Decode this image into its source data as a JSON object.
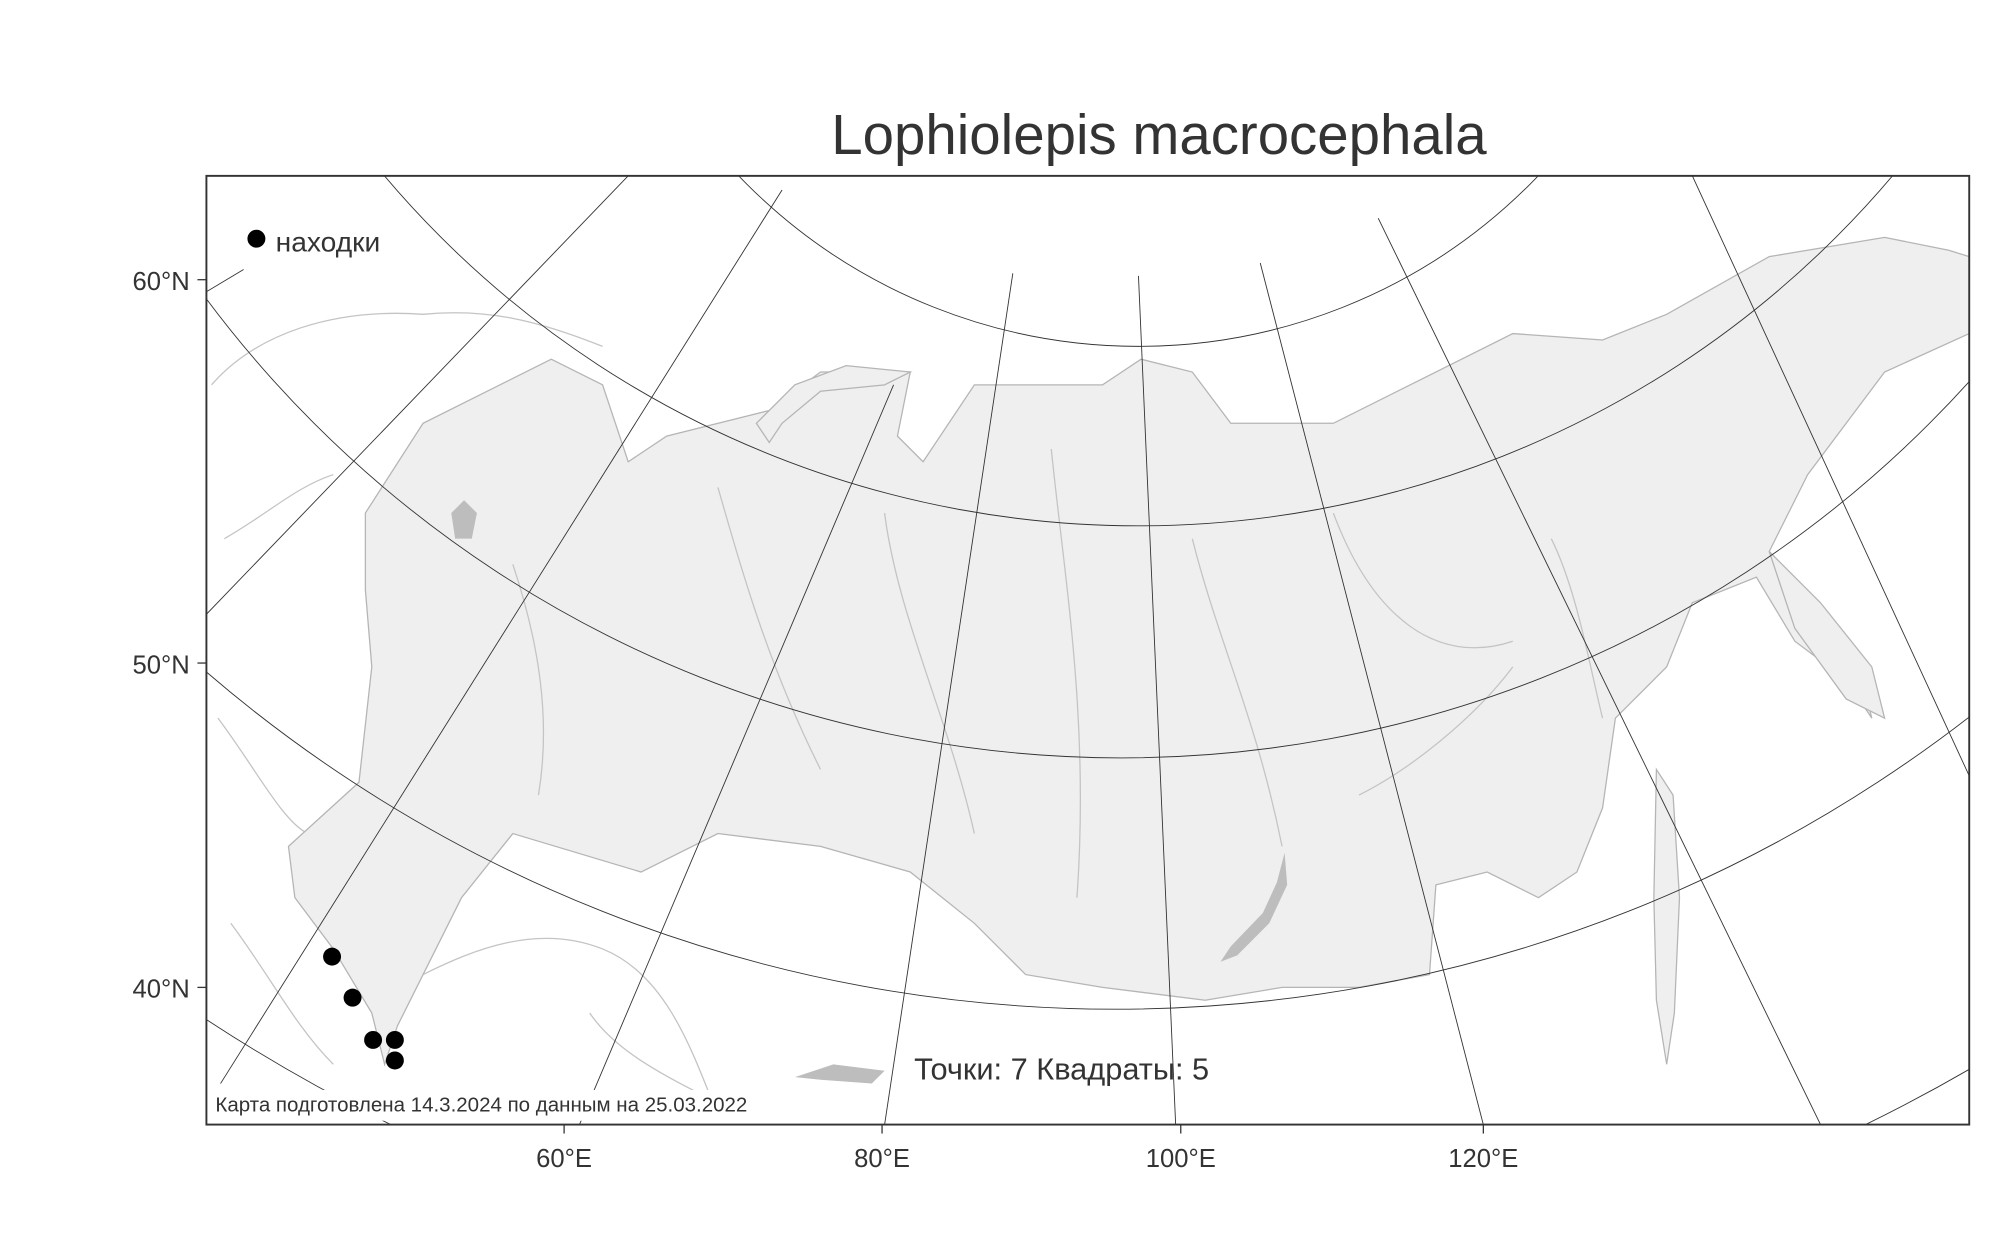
{
  "title": "Lophiolepis macrocephala",
  "legend": {
    "label": "находки",
    "marker": "filled-black-circle"
  },
  "axes": {
    "y_labels": [
      "60°N",
      "50°N",
      "40°N"
    ],
    "x_labels": [
      "60°E",
      "80°E",
      "100°E",
      "120°E"
    ]
  },
  "stats": "Точки: 7 Квадраты: 5",
  "footer": "Карта подготовлена 14.3.2024 по данным на 25.03.2022",
  "colors": {
    "land": "#efefef",
    "coast": "#b5b5b5",
    "lakes": "#bdbdbd",
    "points": "#000000",
    "frame": "#333333"
  }
}
